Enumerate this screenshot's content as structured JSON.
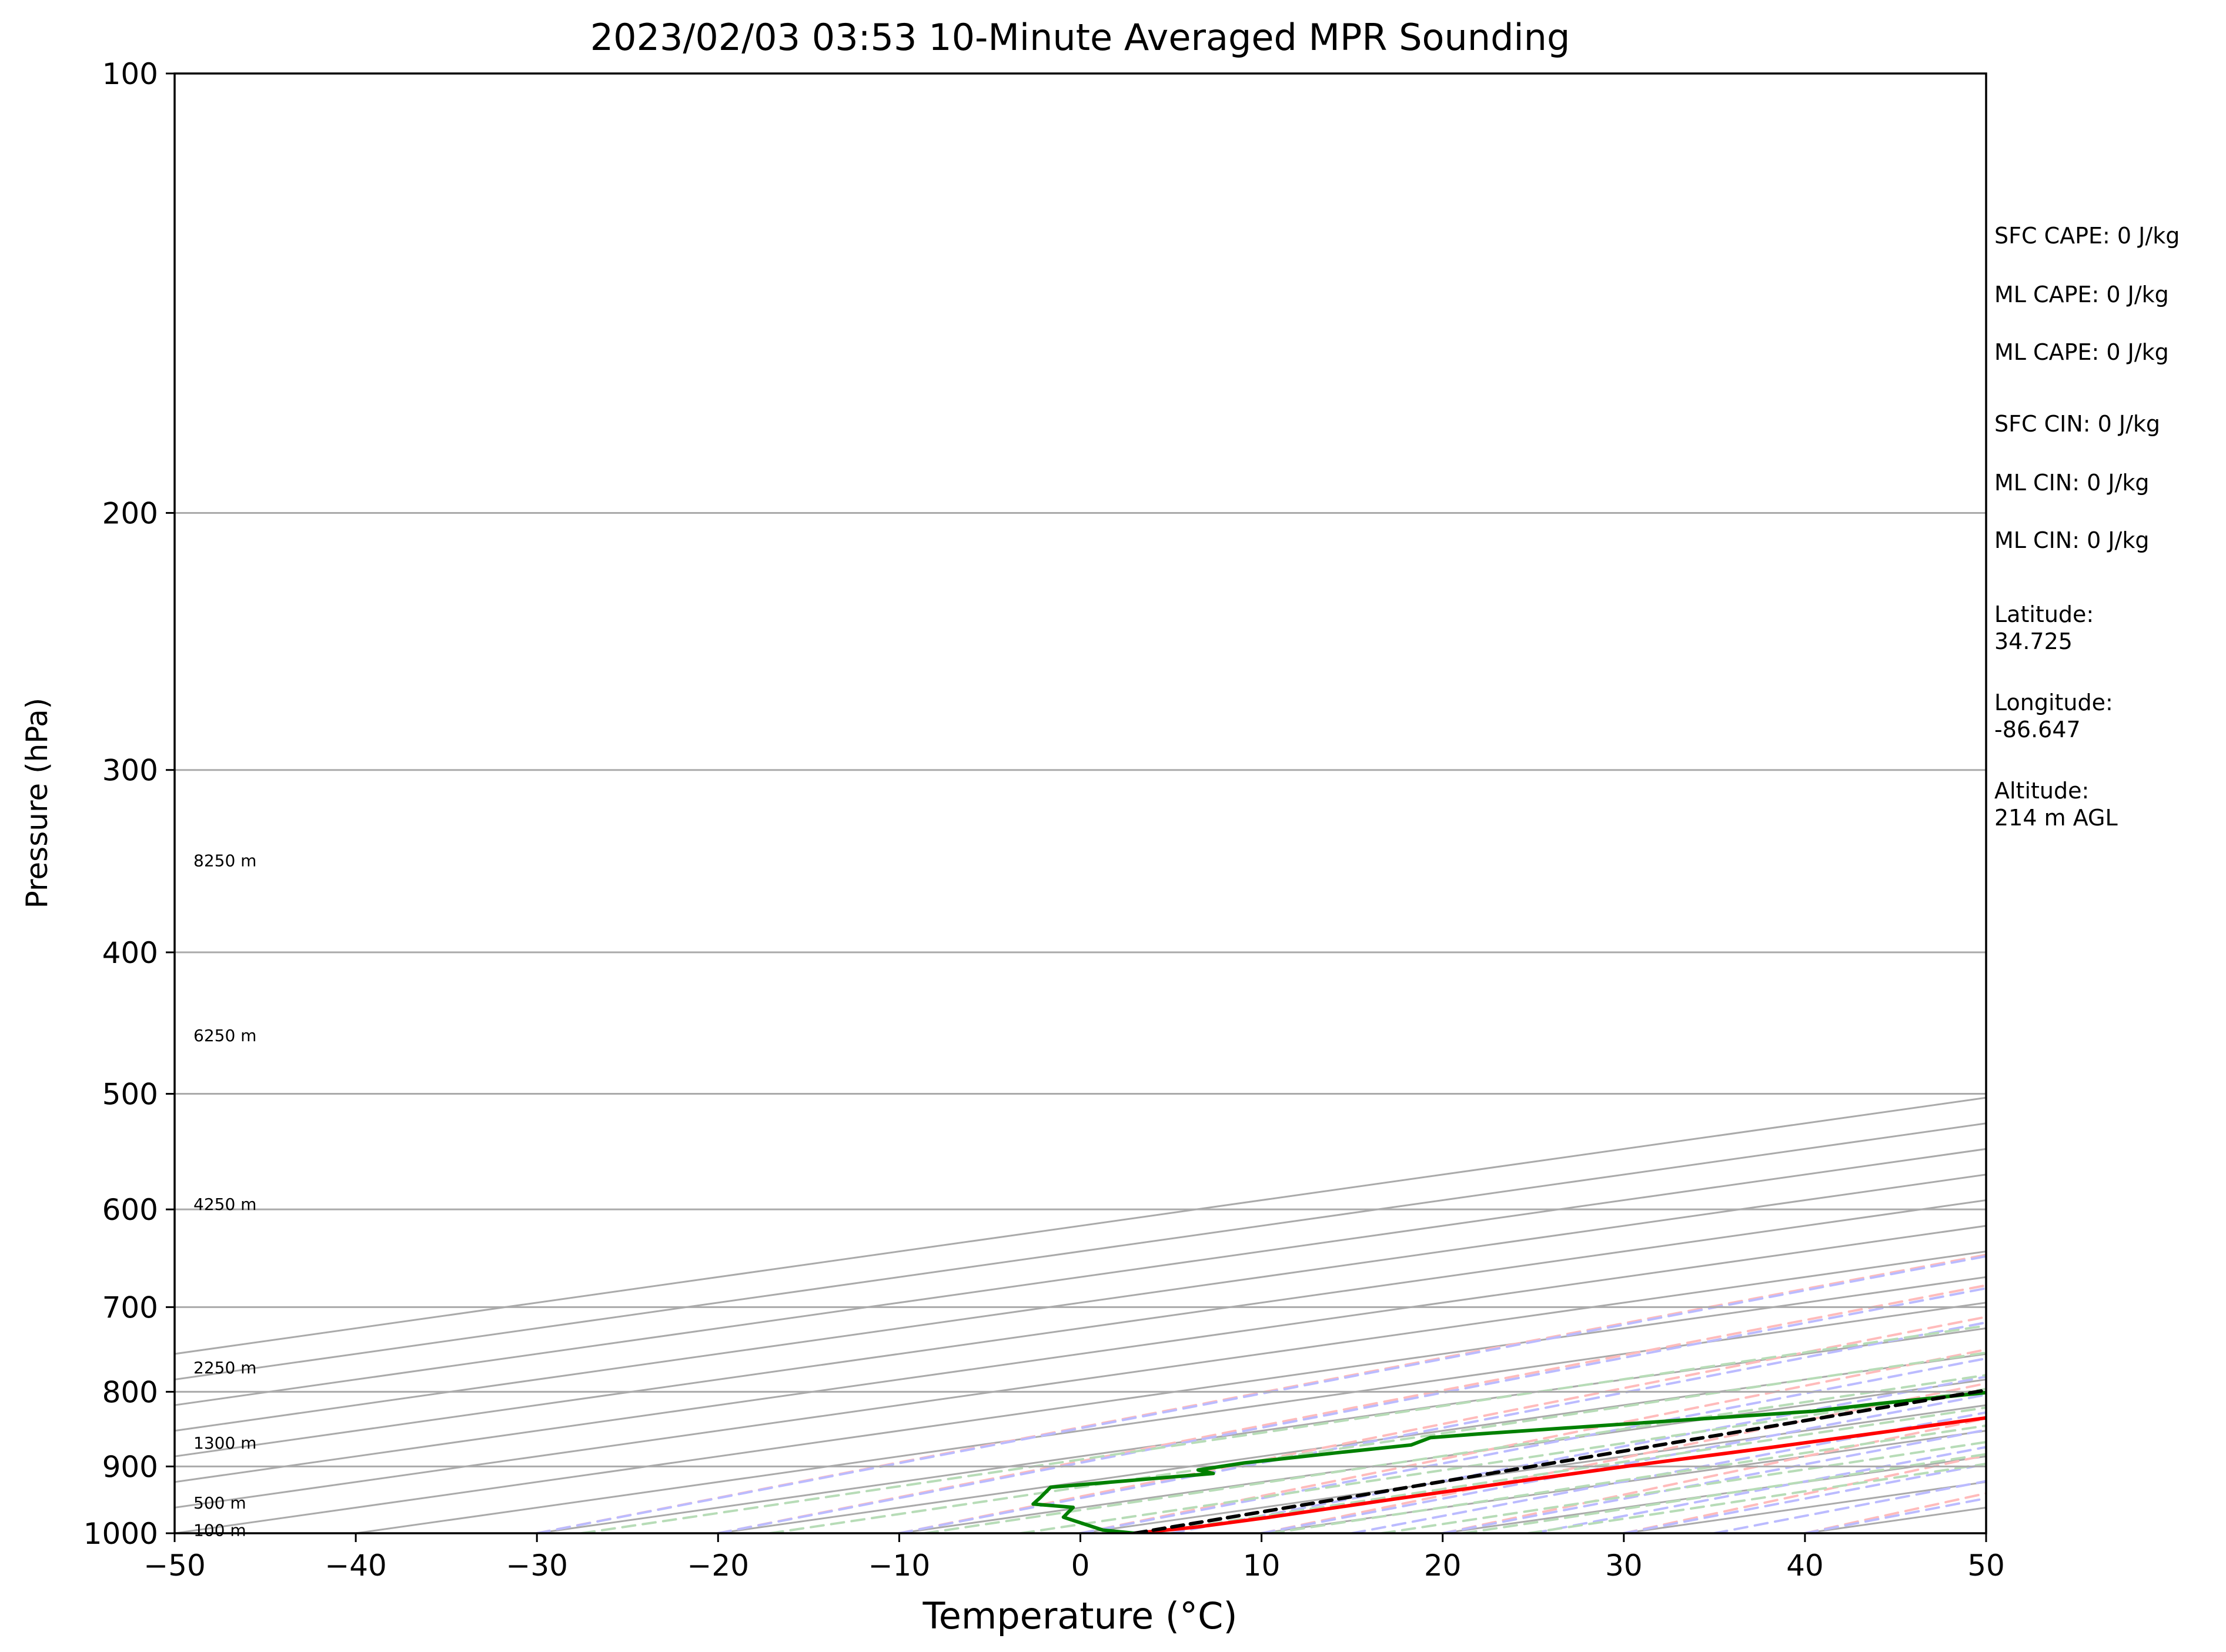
{
  "chart_data": {
    "type": "line",
    "subtype": "skew-t log-p sounding",
    "title": "2023/02/03 03:53 10-Minute Averaged MPR Sounding",
    "xlabel": "Temperature (°C)",
    "ylabel": "Pressure (hPa)",
    "xlim": [
      -50,
      50
    ],
    "ylim": [
      1000,
      100
    ],
    "y_scale": "log",
    "x_ticks": [
      "−50",
      "−40",
      "−30",
      "−20",
      "−10",
      "0",
      "10",
      "20",
      "30",
      "40",
      "50"
    ],
    "y_ticks": [
      "100",
      "200",
      "300",
      "400",
      "500",
      "600",
      "700",
      "800",
      "900",
      "1000"
    ],
    "grid": true,
    "colors": {
      "temperature": "#ff0000",
      "dewpoint": "#008000",
      "parcel": "#000000",
      "isotherm": "#aaaaaa",
      "dry_adiabat": "#ffbbbb",
      "moist_adiabat": "#bbbbff",
      "mixing_ratio": "#b7dcb7"
    },
    "series": [
      {
        "name": "temperature",
        "points": [
          [
            3.0,
            1000
          ],
          [
            4.0,
            990
          ],
          [
            4.2,
            975
          ],
          [
            4.0,
            950
          ],
          [
            3.9,
            925
          ],
          [
            4.0,
            900
          ],
          [
            4.6,
            875
          ],
          [
            4.9,
            850
          ],
          [
            5.0,
            825
          ],
          [
            4.7,
            800
          ],
          [
            4.2,
            775
          ],
          [
            3.6,
            750
          ],
          [
            3.0,
            725
          ],
          [
            2.4,
            700
          ],
          [
            1.5,
            675
          ],
          [
            0.6,
            650
          ],
          [
            -0.4,
            625
          ],
          [
            -1.5,
            600
          ],
          [
            -2.6,
            575
          ],
          [
            -3.7,
            550
          ],
          [
            -4.8,
            525
          ],
          [
            -6.0,
            500
          ],
          [
            -7.2,
            475
          ],
          [
            -8.5,
            450
          ],
          [
            -10.5,
            425
          ],
          [
            -12.5,
            400
          ],
          [
            -15.4,
            375
          ],
          [
            -18.2,
            350
          ],
          [
            -20.8,
            325
          ],
          [
            -23.4,
            300
          ],
          [
            -25.6,
            285
          ],
          [
            -27.5,
            270
          ],
          [
            -29.8,
            255
          ]
        ]
      },
      {
        "name": "dewpoint",
        "points": [
          [
            3.0,
            1000
          ],
          [
            0.0,
            995
          ],
          [
            -7.2,
            975
          ],
          [
            -10.5,
            960
          ],
          [
            -14.0,
            955
          ],
          [
            -16.2,
            945
          ],
          [
            -19.6,
            930
          ],
          [
            -16.0,
            910
          ],
          [
            -18.2,
            905
          ],
          [
            -18.4,
            895
          ],
          [
            -17.2,
            880
          ],
          [
            -16.2,
            870
          ],
          [
            -18.0,
            860
          ],
          [
            -16.8,
            855
          ],
          [
            -7.2,
            825
          ],
          [
            -6.5,
            815
          ],
          [
            -4.8,
            800
          ],
          [
            -2.5,
            780
          ],
          [
            -1.5,
            760
          ],
          [
            -1.2,
            740
          ],
          [
            -0.9,
            700
          ],
          [
            -1.6,
            680
          ],
          [
            -1.8,
            665
          ],
          [
            -1.8,
            640
          ],
          [
            -1.2,
            625
          ],
          [
            -1.2,
            600
          ],
          [
            -3.8,
            575
          ],
          [
            -5.5,
            550
          ],
          [
            -6.0,
            525
          ],
          [
            -7.5,
            500
          ],
          [
            -8.8,
            475
          ],
          [
            -9.8,
            450
          ],
          [
            -12.2,
            425
          ],
          [
            -13.5,
            400
          ],
          [
            -16.5,
            375
          ],
          [
            -19.0,
            350
          ],
          [
            -21.3,
            325
          ],
          [
            -23.0,
            310
          ],
          [
            -25.8,
            300
          ],
          [
            -29.0,
            285
          ],
          [
            -33.0,
            270
          ],
          [
            -32.0,
            260
          ]
        ]
      },
      {
        "name": "parcel",
        "points": [
          [
            3.0,
            1000
          ],
          [
            -49.8,
            260
          ]
        ]
      }
    ],
    "height_labels": [
      {
        "text": "8250 m",
        "p": 346
      },
      {
        "text": "6250 m",
        "p": 456
      },
      {
        "text": "4250 m",
        "p": 595
      },
      {
        "text": "2250 m",
        "p": 770
      },
      {
        "text": "1300 m",
        "p": 867
      },
      {
        "text": "500 m",
        "p": 953
      },
      {
        "text": "100 m",
        "p": 995
      }
    ],
    "annotations": [
      "SFC CAPE: 0 J/kg",
      "ML CAPE: 0 J/kg",
      "ML CAPE: 0 J/kg",
      "SFC CIN: 0 J/kg",
      "ML CIN: 0 J/kg",
      "ML CIN: 0 J/kg",
      "Latitude:\n34.725",
      "Longitude:\n-86.647",
      "Altitude:\n214 m AGL"
    ]
  }
}
